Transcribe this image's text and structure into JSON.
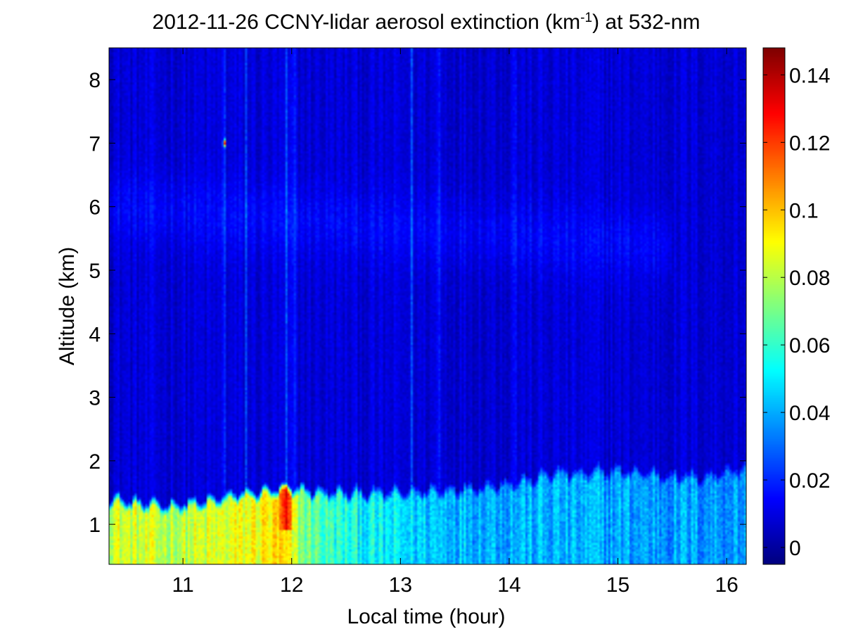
{
  "chart_data": {
    "type": "heatmap",
    "title": {
      "prefix": "2012-11-26 CCNY-lidar aerosol extinction (km",
      "superscript": "-1",
      "suffix": ") at 532-nm"
    },
    "xlabel": "Local time (hour)",
    "ylabel": "Altitude (km)",
    "xlim": [
      10.32,
      16.18
    ],
    "ylim": [
      0.37,
      8.5
    ],
    "xticks": [
      11,
      12,
      13,
      14,
      15,
      16
    ],
    "yticks": [
      1,
      2,
      3,
      4,
      5,
      6,
      7,
      8
    ],
    "colorbar": {
      "colormap": "jet",
      "range": [
        -0.005,
        0.148
      ],
      "ticks": [
        0,
        0.02,
        0.04,
        0.06,
        0.08,
        0.1,
        0.12,
        0.14
      ],
      "tick_labels": [
        "0",
        "0.02",
        "0.04",
        "0.06",
        "0.08",
        "0.1",
        "0.12",
        "0.14"
      ]
    },
    "features": {
      "boundary_layer_top_km": [
        [
          10.35,
          1.45
        ],
        [
          10.6,
          1.38
        ],
        [
          10.9,
          1.35
        ],
        [
          11.2,
          1.4
        ],
        [
          11.5,
          1.52
        ],
        [
          11.8,
          1.58
        ],
        [
          12.0,
          1.62
        ],
        [
          12.3,
          1.55
        ],
        [
          12.6,
          1.55
        ],
        [
          12.9,
          1.55
        ],
        [
          13.2,
          1.58
        ],
        [
          13.6,
          1.62
        ],
        [
          13.9,
          1.68
        ],
        [
          14.2,
          1.75
        ],
        [
          14.4,
          1.88
        ],
        [
          14.7,
          1.85
        ],
        [
          14.9,
          1.9
        ],
        [
          15.2,
          1.88
        ],
        [
          15.5,
          1.82
        ],
        [
          15.8,
          1.8
        ],
        [
          16.0,
          1.9
        ],
        [
          16.15,
          1.92
        ]
      ],
      "boundary_layer_extinction_km-1": [
        [
          10.35,
          0.085
        ],
        [
          10.8,
          0.08
        ],
        [
          11.2,
          0.082
        ],
        [
          11.6,
          0.088
        ],
        [
          11.9,
          0.095
        ],
        [
          12.1,
          0.072
        ],
        [
          12.4,
          0.058
        ],
        [
          12.8,
          0.05
        ],
        [
          13.2,
          0.045
        ],
        [
          13.8,
          0.042
        ],
        [
          14.4,
          0.04
        ],
        [
          15.0,
          0.039
        ],
        [
          15.6,
          0.038
        ],
        [
          16.15,
          0.037
        ]
      ],
      "free_troposphere_extinction_km-1": 0.008,
      "elevated_layer": {
        "time": [
          10.32,
          15.5
        ],
        "altitude_km": [
          5.3,
          6.8
        ],
        "extinction_km-1": 0.014
      },
      "vertical_streaks_hour": [
        11.38,
        11.58,
        11.95,
        12.02,
        13.1,
        13.35,
        14.05
      ],
      "hotspot": {
        "time": 11.38,
        "altitude_km": 7.0,
        "extinction_km-1": 0.145
      }
    }
  }
}
